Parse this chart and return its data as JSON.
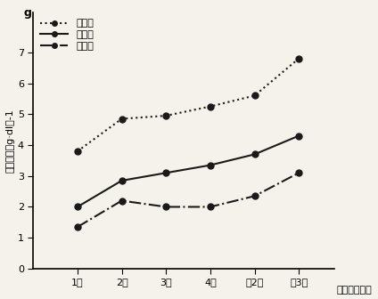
{
  "x_labels": [
    "1周",
    "2周",
    "3周",
    "4周",
    "第2月",
    "第3月"
  ],
  "x_positions": [
    1,
    2,
    3,
    4,
    5,
    6
  ],
  "series": [
    {
      "name": "总蛋白",
      "values": [
        3.8,
        4.85,
        4.95,
        5.25,
        5.6,
        6.8
      ],
      "linestyle": "dotted",
      "color": "#1a1a1a",
      "marker": "o",
      "linewidth": 1.5,
      "markersize": 5
    },
    {
      "name": "白蛋白",
      "values": [
        2.0,
        2.85,
        3.1,
        3.35,
        3.7,
        4.3
      ],
      "linestyle": "solid",
      "color": "#1a1a1a",
      "marker": "o",
      "linewidth": 1.5,
      "markersize": 5
    },
    {
      "name": "球蛋白",
      "values": [
        1.35,
        2.2,
        2.0,
        2.0,
        2.35,
        3.1
      ],
      "linestyle": "dashdot",
      "color": "#1a1a1a",
      "marker": "o",
      "linewidth": 1.5,
      "markersize": 5
    }
  ],
  "ylabel": "血浆蛋白（g·dl）-1",
  "xlabel": "（伤后日期）",
  "ylim": [
    0,
    8
  ],
  "yticks": [
    0,
    1,
    2,
    3,
    4,
    5,
    6,
    7
  ],
  "ytick_label_g_pos": 8,
  "axis_fontsize": 8,
  "legend_fontsize": 8,
  "background_color": "#f5f2ec"
}
